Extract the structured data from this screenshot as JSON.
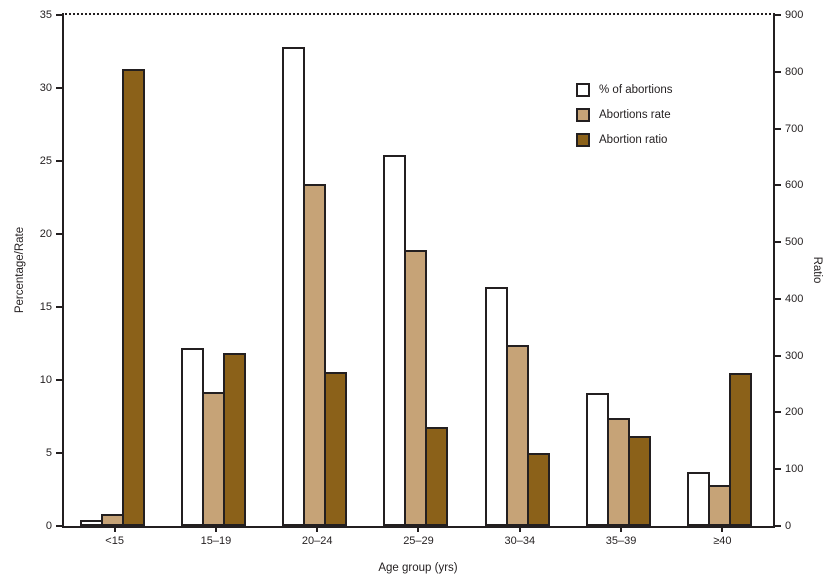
{
  "chart_data": {
    "type": "bar",
    "categories": [
      "<15",
      "15–19",
      "20–24",
      "25–29",
      "30–34",
      "35–39",
      "≥40"
    ],
    "series": [
      {
        "name": "% of abortions",
        "axis": "left",
        "color": "#ffffff",
        "values": [
          0.4,
          12.2,
          32.8,
          25.4,
          16.4,
          9.1,
          3.7
        ]
      },
      {
        "name": "Abortions rate",
        "axis": "left",
        "color": "#c6a377",
        "values": [
          0.8,
          9.2,
          23.4,
          18.9,
          12.4,
          7.4,
          2.8
        ]
      },
      {
        "name": "Abortion ratio",
        "axis": "right",
        "color": "#8b6119",
        "values": [
          805,
          305,
          272,
          175,
          128,
          158,
          270
        ]
      }
    ],
    "left_axis": {
      "label": "Percentage/Rate",
      "min": 0,
      "max": 35,
      "step": 5
    },
    "right_axis": {
      "label": "Ratio",
      "min": 0,
      "max": 900,
      "step": 100
    },
    "x_axis": {
      "label": "Age group (yrs)"
    },
    "legend": {
      "position": "inside-top-right",
      "items": [
        "% of abortions",
        "Abortions rate",
        "Abortion ratio"
      ]
    },
    "grid": false,
    "title": ""
  },
  "style": {
    "line_color": "#231f20",
    "background": "#ffffff",
    "bar_fill_pct": "#ffffff",
    "bar_fill_rate": "#c6a377",
    "bar_fill_ratio": "#8b6119"
  }
}
